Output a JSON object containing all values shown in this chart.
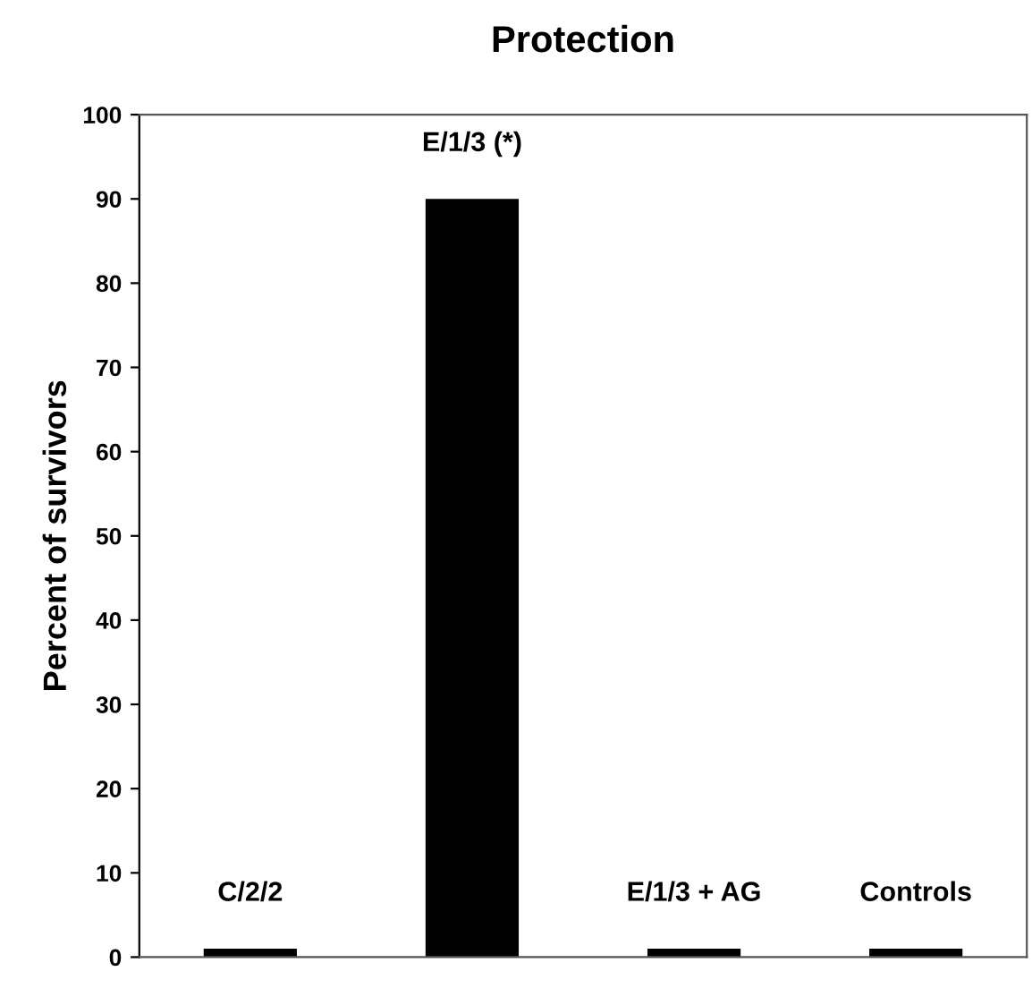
{
  "chart_data": {
    "type": "bar",
    "title": "Protection",
    "ylabel": "Percent of survivors",
    "categories": [
      "C/2/2",
      "E/1/3 (*)",
      "E/1/3 + AG",
      "Controls"
    ],
    "values": [
      1,
      90,
      1,
      1
    ],
    "color": "#000000",
    "ylim": [
      0,
      100
    ],
    "yticks": [
      0,
      10,
      20,
      30,
      40,
      50,
      60,
      70,
      80,
      90,
      100
    ],
    "grid": false
  }
}
